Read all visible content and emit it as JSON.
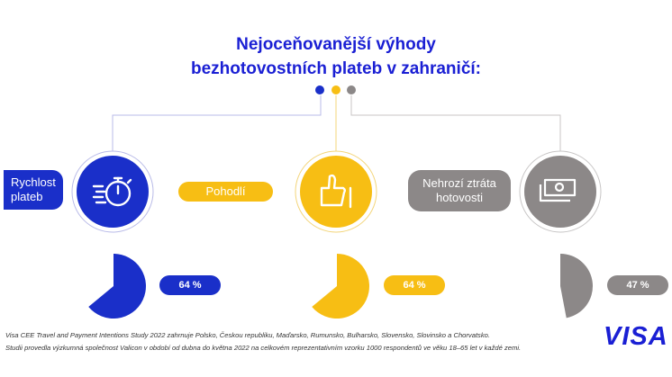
{
  "title": {
    "line1": "Nejoceňovanější výhody",
    "line2": "bezhotovostních plateb v zahraničí:"
  },
  "benefits": [
    {
      "label_line1": "Rychlost",
      "label_line2": "plateb",
      "icon": "stopwatch-icon",
      "percent": 64,
      "percent_label": "64 %",
      "color": "#1a2fc9"
    },
    {
      "label_line1": "Pohodlí",
      "icon": "thumbs-up-icon",
      "percent": 64,
      "percent_label": "64 %",
      "color": "#f7be14"
    },
    {
      "label_line1": "Nehrozí ztráta",
      "label_line2": "hotovosti",
      "icon": "cash-icon",
      "percent": 47,
      "percent_label": "47 %",
      "color": "#8c8888"
    }
  ],
  "footnote": {
    "line1": "Visa CEE Travel and Payment Intentions Study 2022 zahrnuje Polsko, Českou republiku, Maďarsko, Rumunsko, Bulharsko, Slovensko, Slovinsko a Chorvatsko.",
    "line2": "Studii provedla výzkumná společnost Valicon v období od dubna do května 2022 na celkovém reprezentativním vzorku 1000 respondentů ve věku 18–65 let v každé zemi."
  },
  "logo_text": "VISA"
}
